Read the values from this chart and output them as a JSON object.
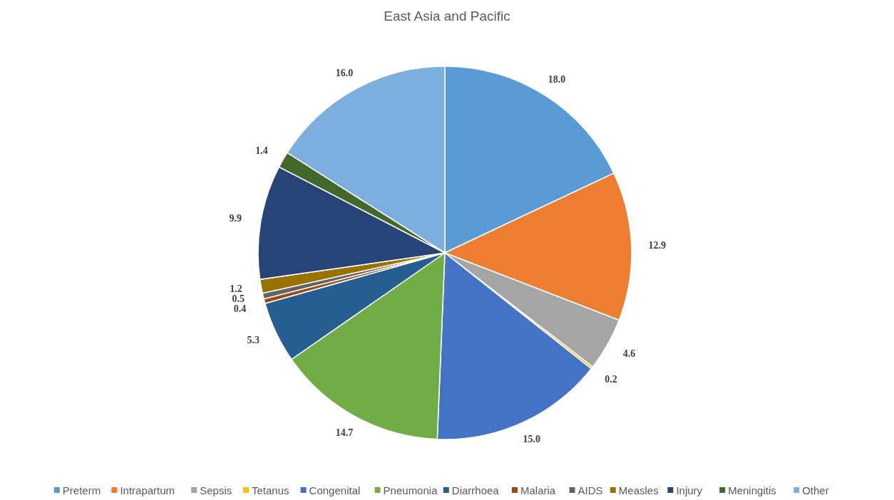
{
  "chart_data": {
    "type": "pie",
    "title": "East Asia and Pacific",
    "categories": [
      "Preterm",
      "Intrapartum",
      "Sepsis",
      "Tetanus",
      "Congenital",
      "Pneumonia",
      "Diarrhoea",
      "Malaria",
      "AIDS",
      "Measles",
      "Injury",
      "Meningitis",
      "Other"
    ],
    "values": [
      18.0,
      12.9,
      4.6,
      0.2,
      15.0,
      14.7,
      5.3,
      0.4,
      0.5,
      1.2,
      9.9,
      1.4,
      16.0
    ],
    "value_labels": [
      "18.0",
      "12.9",
      "4.6",
      "0.2",
      "15.0",
      "14.7",
      "5.3",
      "0.4",
      "0.5",
      "1.2",
      "9.9",
      "1.4",
      "16.0"
    ],
    "colors": [
      "#5b9bd5",
      "#ed7d31",
      "#a5a5a5",
      "#ffc000",
      "#4472c4",
      "#70ad47",
      "#255e91",
      "#9e480e",
      "#636363",
      "#997300",
      "#264478",
      "#43682b",
      "#7cafdd"
    ],
    "legend": "bottom"
  }
}
